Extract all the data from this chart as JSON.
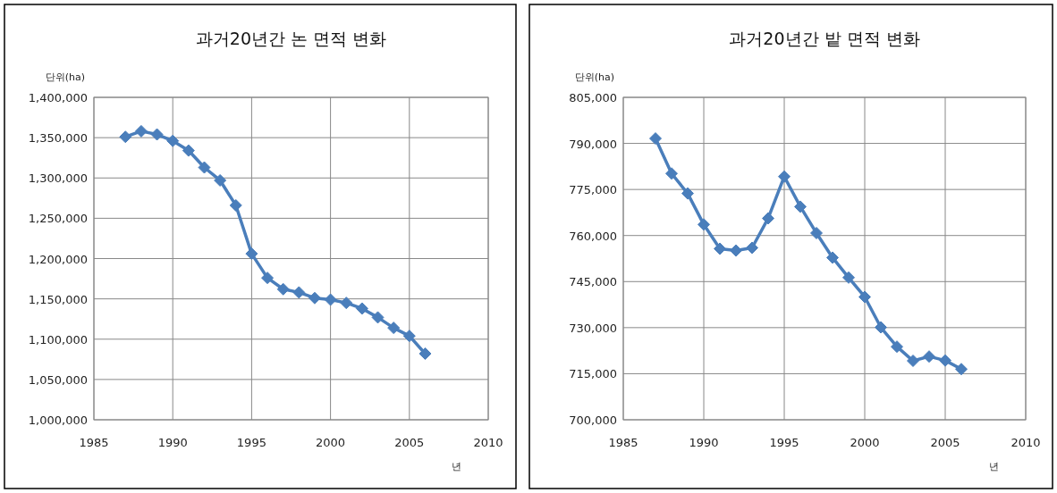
{
  "chart_data": [
    {
      "type": "line",
      "title": "과거20년간 논 면적 변화",
      "ylabel": "단위(ha)",
      "xlabel": "년",
      "x": [
        1987,
        1988,
        1989,
        1990,
        1991,
        1992,
        1993,
        1994,
        1995,
        1996,
        1997,
        1998,
        1999,
        2000,
        2001,
        2002,
        2003,
        2004,
        2005,
        2006
      ],
      "series": [
        {
          "color": "#4a7ebb",
          "values": [
            1351000,
            1358000,
            1354000,
            1346000,
            1334000,
            1313000,
            1297000,
            1266000,
            1206000,
            1176000,
            1162000,
            1158000,
            1151000,
            1149000,
            1145000,
            1138000,
            1127000,
            1114000,
            1104000,
            1082000
          ]
        }
      ],
      "xlim": [
        1985,
        2010
      ],
      "xticks": [
        1985,
        1990,
        1995,
        2000,
        2005,
        2010
      ],
      "ylim": [
        1000000,
        1400000
      ],
      "yticks": [
        {
          "value": 1000000,
          "label": "1,000,000"
        },
        {
          "value": 1050000,
          "label": "1,050,000"
        },
        {
          "value": 1100000,
          "label": "1,100,000"
        },
        {
          "value": 1150000,
          "label": "1,150,000"
        },
        {
          "value": 1200000,
          "label": "1,200,000"
        },
        {
          "value": 1250000,
          "label": "1,250,000"
        },
        {
          "value": 1300000,
          "label": "1,300,000"
        },
        {
          "value": 1350000,
          "label": "1,350,000"
        },
        {
          "value": 1400000,
          "label": "1,400,000"
        }
      ],
      "grid": true,
      "marker": "diamond",
      "line_style": "solid"
    },
    {
      "type": "line",
      "title": "과거20년간 밭 면적 변화",
      "ylabel": "단위(ha)",
      "xlabel": "년",
      "x": [
        1987,
        1988,
        1989,
        1990,
        1991,
        1992,
        1993,
        1994,
        1995,
        1996,
        1997,
        1998,
        1999,
        2000,
        2001,
        2002,
        2003,
        2004,
        2005,
        2006
      ],
      "series": [
        {
          "color": "#4a7ebb",
          "values": [
            791600,
            780200,
            773700,
            763600,
            755700,
            755100,
            756000,
            765600,
            779200,
            769400,
            760800,
            752800,
            746300,
            740000,
            730100,
            723800,
            719200,
            720600,
            719300,
            716500
          ]
        }
      ],
      "xlim": [
        1985,
        2010
      ],
      "xticks": [
        1985,
        1990,
        1995,
        2000,
        2005,
        2010
      ],
      "ylim": [
        700000,
        805000
      ],
      "yticks": [
        {
          "value": 700000,
          "label": "700,000"
        },
        {
          "value": 715000,
          "label": "715,000"
        },
        {
          "value": 730000,
          "label": "730,000"
        },
        {
          "value": 745000,
          "label": "745,000"
        },
        {
          "value": 760000,
          "label": "760,000"
        },
        {
          "value": 775000,
          "label": "775,000"
        },
        {
          "value": 790000,
          "label": "790,000"
        },
        {
          "value": 805000,
          "label": "805,000"
        }
      ],
      "grid": true,
      "marker": "diamond",
      "line_style": "solid"
    }
  ]
}
